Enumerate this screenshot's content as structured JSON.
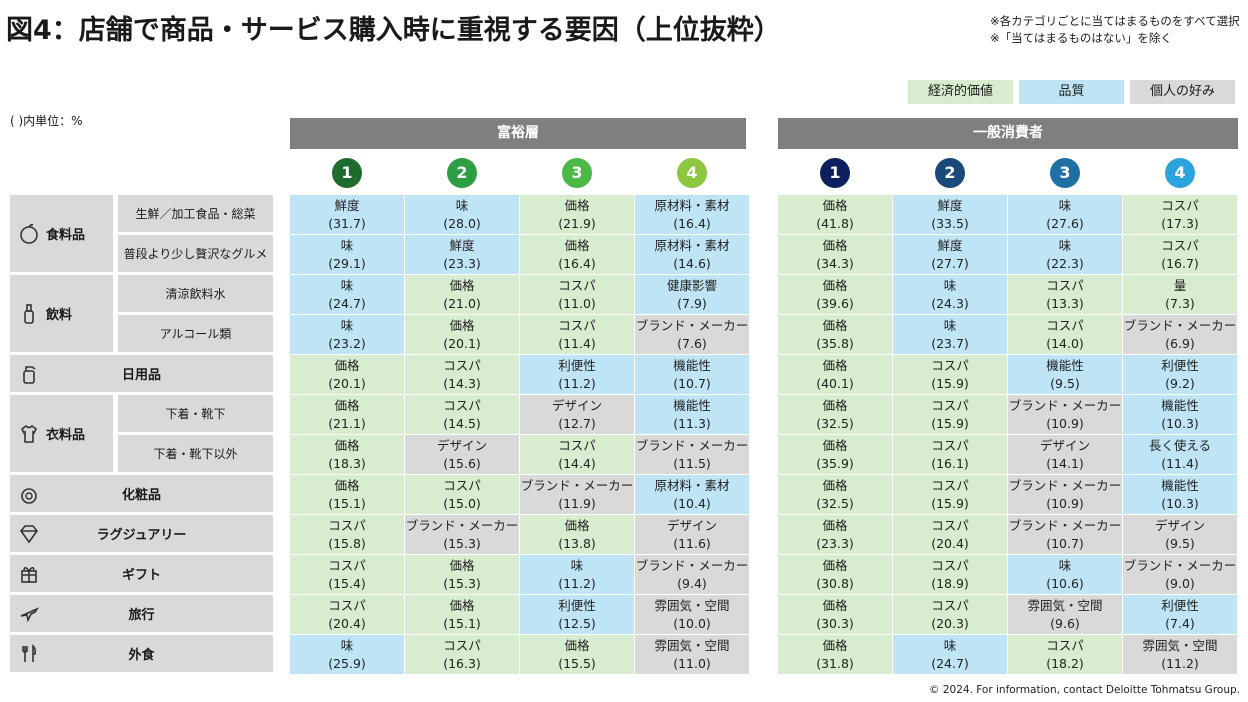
{
  "title": "図4：店舗で商品・サービス購入時に重視する要因（上位抜粋）",
  "notes": [
    "※各カテゴリごとに当てはまるものをすべて選択",
    "※「当てはまるものはない」を除く"
  ],
  "unit": "( )内単位：%",
  "legend": [
    {
      "label": "経済的価値",
      "color": "#d8ecd0"
    },
    {
      "label": "品質",
      "color": "#bfe4f5"
    },
    {
      "label": "個人の好み",
      "color": "#d9d9d9"
    }
  ],
  "footer": "© 2024. For information, contact Deloitte Tohmatsu Group.",
  "chart_data": {
    "type": "table",
    "groups": [
      {
        "name": "富裕層",
        "ranks": [
          "1",
          "2",
          "3",
          "4"
        ],
        "rank_colors": [
          "#1e6b2e",
          "#2e9e45",
          "#4cb848",
          "#8dc63f"
        ]
      },
      {
        "name": "一般消費者",
        "ranks": [
          "1",
          "2",
          "3",
          "4"
        ],
        "rank_colors": [
          "#0d1f5c",
          "#1a4a7a",
          "#1e6fa3",
          "#2ba4de"
        ]
      }
    ],
    "categories": [
      {
        "name": "食料品",
        "icon": "apple-icon",
        "subs": [
          "生鮮／加工食品・総菜",
          "普段より少し贅沢なグルメ"
        ]
      },
      {
        "name": "飲料",
        "icon": "bottle-icon",
        "subs": [
          "清涼飲料水",
          "アルコール類"
        ]
      },
      {
        "name": "日用品",
        "icon": "spray-icon",
        "subs": []
      },
      {
        "name": "衣料品",
        "icon": "shirt-icon",
        "subs": [
          "下着・靴下",
          "下着・靴下以外"
        ]
      },
      {
        "name": "化粧品",
        "icon": "cosmetic-icon",
        "subs": []
      },
      {
        "name": "ラグジュアリー",
        "icon": "diamond-icon",
        "subs": []
      },
      {
        "name": "ギフト",
        "icon": "gift-icon",
        "subs": []
      },
      {
        "name": "旅行",
        "icon": "plane-icon",
        "subs": []
      },
      {
        "name": "外食",
        "icon": "cutlery-icon",
        "subs": []
      }
    ],
    "rows": [
      {
        "affluent": [
          [
            "鮮度",
            "(31.7)",
            "q"
          ],
          [
            "味",
            "(28.0)",
            "q"
          ],
          [
            "価格",
            "(21.9)",
            "e"
          ],
          [
            "原材料・素材",
            "(16.4)",
            "q"
          ]
        ],
        "general": [
          [
            "価格",
            "(41.8)",
            "e"
          ],
          [
            "鮮度",
            "(33.5)",
            "q"
          ],
          [
            "味",
            "(27.6)",
            "q"
          ],
          [
            "コスパ",
            "(17.3)",
            "e"
          ]
        ]
      },
      {
        "affluent": [
          [
            "味",
            "(29.1)",
            "q"
          ],
          [
            "鮮度",
            "(23.3)",
            "q"
          ],
          [
            "価格",
            "(16.4)",
            "e"
          ],
          [
            "原材料・素材",
            "(14.6)",
            "q"
          ]
        ],
        "general": [
          [
            "価格",
            "(34.3)",
            "e"
          ],
          [
            "鮮度",
            "(27.7)",
            "q"
          ],
          [
            "味",
            "(22.3)",
            "q"
          ],
          [
            "コスパ",
            "(16.7)",
            "e"
          ]
        ]
      },
      {
        "affluent": [
          [
            "味",
            "(24.7)",
            "q"
          ],
          [
            "価格",
            "(21.0)",
            "e"
          ],
          [
            "コスパ",
            "(11.0)",
            "e"
          ],
          [
            "健康影響",
            "(7.9)",
            "q"
          ]
        ],
        "general": [
          [
            "価格",
            "(39.6)",
            "e"
          ],
          [
            "味",
            "(24.3)",
            "q"
          ],
          [
            "コスパ",
            "(13.3)",
            "e"
          ],
          [
            "量",
            "(7.3)",
            "e"
          ]
        ]
      },
      {
        "affluent": [
          [
            "味",
            "(23.2)",
            "q"
          ],
          [
            "価格",
            "(20.1)",
            "e"
          ],
          [
            "コスパ",
            "(11.4)",
            "e"
          ],
          [
            "ブランド・メーカー",
            "(7.6)",
            "p"
          ]
        ],
        "general": [
          [
            "価格",
            "(35.8)",
            "e"
          ],
          [
            "味",
            "(23.7)",
            "q"
          ],
          [
            "コスパ",
            "(14.0)",
            "e"
          ],
          [
            "ブランド・メーカー",
            "(6.9)",
            "p"
          ]
        ]
      },
      {
        "affluent": [
          [
            "価格",
            "(20.1)",
            "e"
          ],
          [
            "コスパ",
            "(14.3)",
            "e"
          ],
          [
            "利便性",
            "(11.2)",
            "q"
          ],
          [
            "機能性",
            "(10.7)",
            "q"
          ]
        ],
        "general": [
          [
            "価格",
            "(40.1)",
            "e"
          ],
          [
            "コスパ",
            "(15.9)",
            "e"
          ],
          [
            "機能性",
            "(9.5)",
            "q"
          ],
          [
            "利便性",
            "(9.2)",
            "q"
          ]
        ]
      },
      {
        "affluent": [
          [
            "価格",
            "(21.1)",
            "e"
          ],
          [
            "コスパ",
            "(14.5)",
            "e"
          ],
          [
            "デザイン",
            "(12.7)",
            "p"
          ],
          [
            "機能性",
            "(11.3)",
            "q"
          ]
        ],
        "general": [
          [
            "価格",
            "(32.5)",
            "e"
          ],
          [
            "コスパ",
            "(15.9)",
            "e"
          ],
          [
            "ブランド・メーカー",
            "(10.9)",
            "p"
          ],
          [
            "機能性",
            "(10.3)",
            "q"
          ]
        ]
      },
      {
        "affluent": [
          [
            "価格",
            "(18.3)",
            "e"
          ],
          [
            "デザイン",
            "(15.6)",
            "p"
          ],
          [
            "コスパ",
            "(14.4)",
            "e"
          ],
          [
            "ブランド・メーカー",
            "(11.5)",
            "p"
          ]
        ],
        "general": [
          [
            "価格",
            "(35.9)",
            "e"
          ],
          [
            "コスパ",
            "(16.1)",
            "e"
          ],
          [
            "デザイン",
            "(14.1)",
            "p"
          ],
          [
            "長く使える",
            "(11.4)",
            "q"
          ]
        ]
      },
      {
        "affluent": [
          [
            "価格",
            "(15.1)",
            "e"
          ],
          [
            "コスパ",
            "(15.0)",
            "e"
          ],
          [
            "ブランド・メーカー",
            "(11.9)",
            "p"
          ],
          [
            "原材料・素材",
            "(10.4)",
            "q"
          ]
        ],
        "general": [
          [
            "価格",
            "(32.5)",
            "e"
          ],
          [
            "コスパ",
            "(15.9)",
            "e"
          ],
          [
            "ブランド・メーカー",
            "(10.9)",
            "p"
          ],
          [
            "機能性",
            "(10.3)",
            "q"
          ]
        ]
      },
      {
        "affluent": [
          [
            "コスパ",
            "(15.8)",
            "e"
          ],
          [
            "ブランド・メーカー",
            "(15.3)",
            "p"
          ],
          [
            "価格",
            "(13.8)",
            "e"
          ],
          [
            "デザイン",
            "(11.6)",
            "p"
          ]
        ],
        "general": [
          [
            "価格",
            "(23.3)",
            "e"
          ],
          [
            "コスパ",
            "(20.4)",
            "e"
          ],
          [
            "ブランド・メーカー",
            "(10.7)",
            "p"
          ],
          [
            "デザイン",
            "(9.5)",
            "p"
          ]
        ]
      },
      {
        "affluent": [
          [
            "コスパ",
            "(15.4)",
            "e"
          ],
          [
            "価格",
            "(15.3)",
            "e"
          ],
          [
            "味",
            "(11.2)",
            "q"
          ],
          [
            "ブランド・メーカー",
            "(9.4)",
            "p"
          ]
        ],
        "general": [
          [
            "価格",
            "(30.8)",
            "e"
          ],
          [
            "コスパ",
            "(18.9)",
            "e"
          ],
          [
            "味",
            "(10.6)",
            "q"
          ],
          [
            "ブランド・メーカー",
            "(9.0)",
            "p"
          ]
        ]
      },
      {
        "affluent": [
          [
            "コスパ",
            "(20.4)",
            "e"
          ],
          [
            "価格",
            "(15.1)",
            "e"
          ],
          [
            "利便性",
            "(12.5)",
            "q"
          ],
          [
            "雰囲気・空間",
            "(10.0)",
            "p"
          ]
        ],
        "general": [
          [
            "価格",
            "(30.3)",
            "e"
          ],
          [
            "コスパ",
            "(20.3)",
            "e"
          ],
          [
            "雰囲気・空間",
            "(9.6)",
            "p"
          ],
          [
            "利便性",
            "(7.4)",
            "q"
          ]
        ]
      },
      {
        "affluent": [
          [
            "味",
            "(25.9)",
            "q"
          ],
          [
            "コスパ",
            "(16.3)",
            "e"
          ],
          [
            "価格",
            "(15.5)",
            "e"
          ],
          [
            "雰囲気・空間",
            "(11.0)",
            "p"
          ]
        ],
        "general": [
          [
            "価格",
            "(31.8)",
            "e"
          ],
          [
            "味",
            "(24.7)",
            "q"
          ],
          [
            "コスパ",
            "(18.2)",
            "e"
          ],
          [
            "雰囲気・空間",
            "(11.2)",
            "p"
          ]
        ]
      }
    ]
  }
}
